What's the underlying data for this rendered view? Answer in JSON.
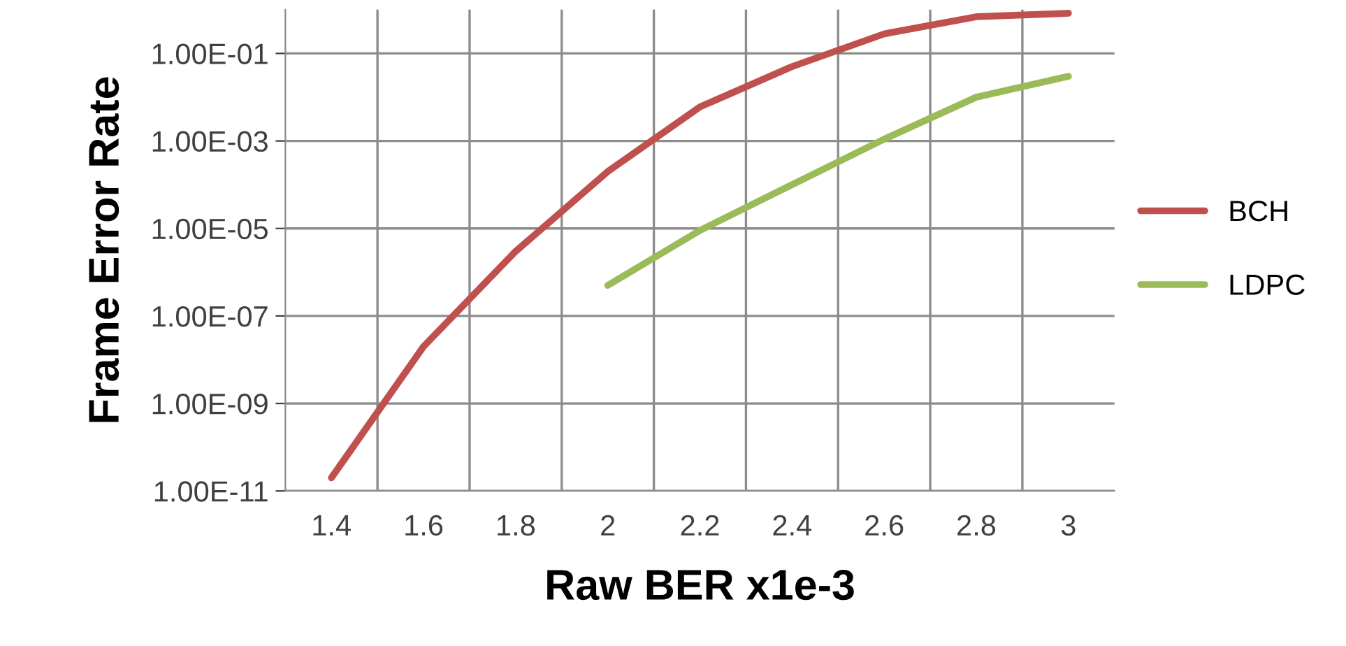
{
  "chart_data": {
    "type": "line",
    "xlabel": "Raw BER x1e-3",
    "ylabel": "Frame Error Rate",
    "categories": [
      "1.4",
      "1.6",
      "1.8",
      "2",
      "2.2",
      "2.4",
      "2.6",
      "2.8",
      "3"
    ],
    "series": [
      {
        "name": "BCH",
        "color": "#c0504d",
        "values": [
          2e-11,
          2e-08,
          3e-06,
          0.0002,
          0.006,
          0.05,
          0.28,
          0.69,
          0.83
        ]
      },
      {
        "name": "LDPC",
        "color": "#9bbb59",
        "values": [
          null,
          null,
          null,
          5e-07,
          9e-06,
          0.0001,
          0.0011,
          0.01,
          0.03
        ]
      }
    ],
    "log": true,
    "ylim": [
      1e-11,
      1
    ],
    "yticks": [
      {
        "value": 1e-11,
        "label": "1.00E-11"
      },
      {
        "value": 1e-09,
        "label": "1.00E-09"
      },
      {
        "value": 1e-07,
        "label": "1.00E-07"
      },
      {
        "value": 1e-05,
        "label": "1.00E-05"
      },
      {
        "value": 0.001,
        "label": "1.00E-03"
      },
      {
        "value": 0.1,
        "label": "1.00E-01"
      }
    ],
    "grid": true,
    "legend": "right",
    "marker": "none",
    "line_style": "solid"
  }
}
